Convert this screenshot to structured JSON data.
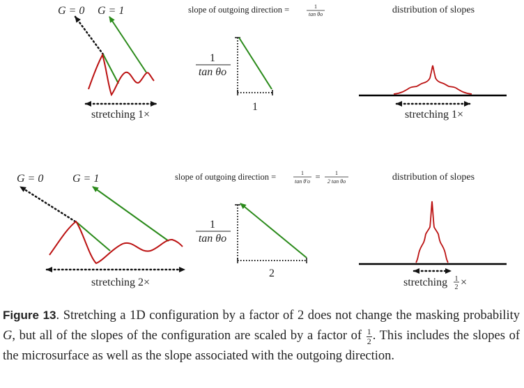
{
  "figure": {
    "top_row": {
      "g0_label": "G = 0",
      "g1_label": "G = 1",
      "stretch_label": "stretching 1×",
      "slope_title_prefix": "slope of outgoing direction =",
      "slope_frac_num": "1",
      "slope_frac_den": "tan θo",
      "rise_num": "1",
      "rise_den": "tan θo",
      "run_label": "1",
      "dist_title": "distribution of slopes",
      "dist_stretch_label": "stretching 1×"
    },
    "bottom_row": {
      "g0_label": "G = 0",
      "g1_label": "G = 1",
      "stretch_label": "stretching 2×",
      "slope_title_prefix": "slope of outgoing direction =",
      "slope_frac1_num": "1",
      "slope_frac1_den": "tan θ′o",
      "slope_equals": "=",
      "slope_frac2_num": "1",
      "slope_frac2_den": "2 tan θo",
      "rise_num": "1",
      "rise_den": "tan θo",
      "run_label": "2",
      "dist_title": "distribution of slopes",
      "dist_stretch_prefix": "stretching",
      "dist_stretch_num": "1",
      "dist_stretch_den": "2",
      "dist_stretch_suffix": "×"
    },
    "colors": {
      "surface": "#bb1111",
      "outgoing_ray": "#2a8a1a",
      "dotted": "#111111",
      "baseline": "#000000"
    }
  },
  "caption": {
    "label": "Figure 13",
    "text_1": ". Stretching a 1D configuration by a factor of 2 does not change the masking probability ",
    "var_g": "G",
    "text_2": ", but all of the slopes of the configuration are scaled by a factor of ",
    "frac_num": "1",
    "frac_den": "2",
    "text_3": ". This includes the slopes of the microsurface as well as the slope associated with the outgoing direction."
  }
}
